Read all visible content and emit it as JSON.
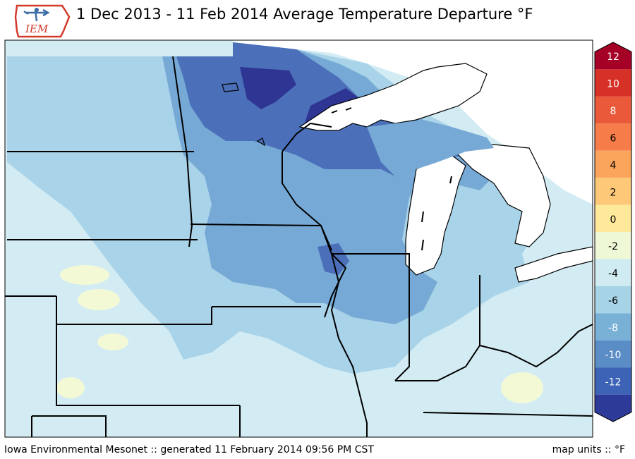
{
  "title": "1 Dec 2013 - 11 Feb 2014 Average Temperature Departure °F",
  "logo": {
    "text": "IEM"
  },
  "footer": {
    "left": "Iowa Environmental Mesonet :: generated 11 February 2014 09:56 PM CST",
    "right": "map units :: °F"
  },
  "colorbar": {
    "ticks": [
      "12",
      "10",
      "8",
      "6",
      "4",
      "2",
      "0",
      "-2",
      "-4",
      "-6",
      "-8",
      "-10",
      "-12"
    ],
    "colors": [
      "#a50026",
      "#d73027",
      "#ea5a3a",
      "#f67c4a",
      "#fba45c",
      "#fdc877",
      "#fee99a",
      "#eef8d6",
      "#d0ebf2",
      "#a6d4e6",
      "#79b0d6",
      "#5a8cc6",
      "#3c63b6",
      "#2e3a98"
    ]
  },
  "legend_colors": {
    "-2 to 0": "#f4f9d5",
    "-4 to -2": "#d3ecf4",
    "-6 to -4": "#a9d3e8",
    "-8 to -6": "#76a9d5",
    "-10 to -8": "#4b6fb9",
    "-12 to -10": "#2e3592"
  }
}
